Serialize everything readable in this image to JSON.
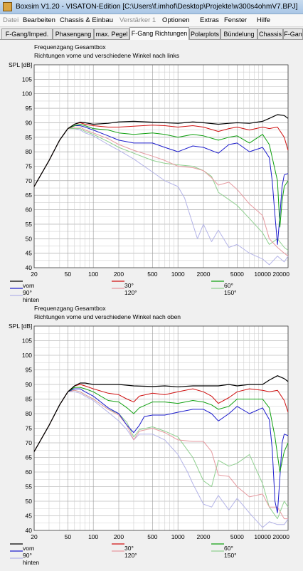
{
  "window": {
    "title": "Boxsim V1.20 - VISATON-Edition [C:\\Users\\f.imhof\\Desktop\\Projekte\\w300s4ohmV7.BPJ]"
  },
  "menu": [
    {
      "label": "Datei",
      "disabled": true
    },
    {
      "label": "Bearbeiten",
      "disabled": false
    },
    {
      "label": "Chassis & Einbau",
      "disabled": false
    },
    {
      "label": "Verstärker 1",
      "disabled": true
    },
    {
      "label": "Optionen",
      "disabled": false
    },
    {
      "label": "Extras",
      "disabled": false
    },
    {
      "label": "Fenster",
      "disabled": false
    },
    {
      "label": "Hilfe",
      "disabled": false
    }
  ],
  "tabs": [
    "F-Gang/Imped.",
    "Phasengang",
    "max. Pegel",
    "F-Gang Richtungen",
    "Polarplots",
    "Bündelung",
    "Chassis",
    "F-Gan"
  ],
  "active_tab": "F-Gang Richtungen",
  "colors": {
    "vorn": "#000000",
    "30": "#d01010",
    "60": "#10a010",
    "90": "#1c1ccc",
    "120": "#e69aa0",
    "150": "#8fd08f",
    "hinten": "#b4b4e8"
  },
  "chart_data": [
    {
      "type": "line",
      "title": "Frequenzgang Gesamtbox",
      "subtitle": "Richtungen vorne und verschiedene Winkel nach links",
      "ylabel": "SPL [dB]",
      "xscale": "log",
      "xlim": [
        20,
        20000
      ],
      "ylim": [
        40,
        110
      ],
      "xticks": [
        "20",
        "50",
        "100",
        "200",
        "500",
        "1000",
        "2000",
        "5000",
        "10000",
        "20000"
      ],
      "yticks": [
        "40",
        "45",
        "50",
        "55",
        "60",
        "65",
        "70",
        "75",
        "80",
        "85",
        "90",
        "95",
        "100",
        "105"
      ],
      "grid": true,
      "legend": [
        {
          "key": "vorn",
          "label": "vorn"
        },
        {
          "key": "30",
          "label": "30°"
        },
        {
          "key": "60",
          "label": "60°"
        },
        {
          "key": "90",
          "label": "90°"
        },
        {
          "key": "120",
          "label": "120°"
        },
        {
          "key": "150",
          "label": "150°"
        },
        {
          "key": "hinten",
          "label": "hinten"
        }
      ],
      "series": [
        {
          "name": "vorn",
          "key": "vorn",
          "x": [
            20,
            30,
            40,
            50,
            60,
            70,
            80,
            100,
            150,
            200,
            300,
            500,
            700,
            1000,
            1500,
            2000,
            3000,
            4000,
            5000,
            7000,
            10000,
            12000,
            15000,
            18000,
            20000
          ],
          "y": [
            68,
            77,
            84,
            88,
            89.5,
            90.2,
            90,
            89.5,
            89.8,
            90.3,
            90.5,
            90.2,
            90,
            89.8,
            90.3,
            90,
            89.5,
            89.8,
            90,
            89.8,
            90.5,
            91.5,
            92.8,
            92.5,
            91.5
          ]
        },
        {
          "name": "30°",
          "key": "30",
          "x": [
            20,
            30,
            40,
            50,
            60,
            70,
            80,
            100,
            150,
            200,
            300,
            500,
            700,
            1000,
            1500,
            2000,
            3000,
            4000,
            5000,
            7000,
            10000,
            12000,
            15000,
            18000,
            20000
          ],
          "y": [
            68,
            77,
            84,
            88,
            89.5,
            90,
            89.5,
            89,
            88.5,
            88.5,
            88.8,
            89.2,
            89,
            88.5,
            89,
            88.5,
            87,
            88,
            88.5,
            87.5,
            88.5,
            88,
            88.5,
            85,
            80.5
          ]
        },
        {
          "name": "60°",
          "key": "60",
          "x": [
            20,
            30,
            40,
            50,
            60,
            70,
            80,
            100,
            150,
            200,
            300,
            500,
            700,
            1000,
            1500,
            2000,
            3000,
            4000,
            5000,
            7000,
            10000,
            12000,
            15000,
            16000,
            17000,
            18000,
            20000
          ],
          "y": [
            68,
            77,
            84,
            88,
            89,
            89.5,
            89,
            88,
            87.5,
            86.5,
            86,
            86.5,
            86,
            85,
            86,
            85.5,
            84,
            85,
            85.5,
            83,
            86,
            82.5,
            70,
            54,
            63,
            68,
            70
          ]
        },
        {
          "name": "90°",
          "key": "90",
          "x": [
            20,
            30,
            40,
            50,
            60,
            70,
            80,
            100,
            150,
            200,
            300,
            500,
            700,
            1000,
            1500,
            2000,
            3000,
            4000,
            5000,
            7000,
            10000,
            12000,
            13000,
            14000,
            15000,
            16000,
            17000,
            18000,
            20000
          ],
          "y": [
            68,
            77,
            84,
            88,
            89,
            89,
            88.5,
            87.5,
            85.5,
            84,
            83,
            83,
            81.5,
            80,
            82,
            81.5,
            79.5,
            82.5,
            83,
            80,
            81.5,
            78,
            70,
            58,
            48,
            58,
            68,
            72,
            72.5
          ]
        },
        {
          "name": "120°",
          "key": "120",
          "x": [
            20,
            30,
            40,
            50,
            60,
            70,
            80,
            100,
            150,
            200,
            300,
            500,
            700,
            1000,
            1500,
            2000,
            2500,
            3000,
            4000,
            5000,
            7000,
            10000,
            12000,
            15000,
            18000,
            20000
          ],
          "y": [
            68,
            77,
            84,
            88,
            88.5,
            88.5,
            87.5,
            86.5,
            84.5,
            82.5,
            80.5,
            78.5,
            77,
            75,
            74.5,
            73.5,
            71,
            68.5,
            69.5,
            67,
            62,
            58,
            50,
            47,
            45,
            44
          ]
        },
        {
          "name": "150°",
          "key": "150",
          "x": [
            20,
            30,
            40,
            50,
            60,
            70,
            80,
            100,
            150,
            200,
            300,
            500,
            700,
            1000,
            1500,
            2000,
            2500,
            3000,
            4000,
            5000,
            7000,
            10000,
            12000,
            15000,
            18000,
            20000
          ],
          "y": [
            68,
            77,
            84,
            88,
            88,
            88,
            87,
            86,
            83.5,
            81.5,
            79.5,
            77,
            76,
            75.5,
            75,
            73.5,
            71.5,
            66,
            63.5,
            61.5,
            57,
            52,
            48,
            50,
            47,
            46
          ]
        },
        {
          "name": "hinten",
          "key": "hinten",
          "x": [
            20,
            30,
            40,
            50,
            60,
            70,
            80,
            100,
            150,
            200,
            300,
            500,
            700,
            1000,
            1200,
            1500,
            1700,
            2000,
            2500,
            3000,
            4000,
            5000,
            7000,
            10000,
            12000,
            15000,
            18000,
            20000
          ],
          "y": [
            68,
            77,
            84,
            88,
            88,
            87.5,
            86.5,
            85.5,
            82.5,
            80.5,
            77.5,
            73,
            70,
            68,
            64,
            55,
            50,
            55,
            49,
            53,
            47,
            48,
            45,
            43,
            41,
            44,
            42,
            44
          ]
        }
      ]
    },
    {
      "type": "line",
      "title": "Frequenzgang Gesamtbox",
      "subtitle": "Richtungen vorne und verschiedene Winkel nach oben",
      "ylabel": "SPL [dB]",
      "xscale": "log",
      "xlim": [
        20,
        20000
      ],
      "ylim": [
        40,
        110
      ],
      "xticks": [
        "20",
        "50",
        "100",
        "200",
        "500",
        "1000",
        "2000",
        "5000",
        "10000",
        "20000"
      ],
      "yticks": [
        "40",
        "45",
        "50",
        "55",
        "60",
        "65",
        "70",
        "75",
        "80",
        "85",
        "90",
        "95",
        "100",
        "105"
      ],
      "grid": true,
      "legend": [
        {
          "key": "vorn",
          "label": "vorn"
        },
        {
          "key": "30",
          "label": "30°"
        },
        {
          "key": "60",
          "label": "60°"
        },
        {
          "key": "90",
          "label": "90°"
        },
        {
          "key": "120",
          "label": "120°"
        },
        {
          "key": "150",
          "label": "150°"
        },
        {
          "key": "hinten",
          "label": "hinten"
        }
      ],
      "series": [
        {
          "name": "vorn",
          "key": "vorn",
          "x": [
            20,
            30,
            40,
            50,
            60,
            70,
            80,
            100,
            150,
            200,
            300,
            500,
            700,
            1000,
            1500,
            2000,
            3000,
            4000,
            5000,
            7000,
            10000,
            12000,
            15000,
            18000,
            20000
          ],
          "y": [
            67,
            76,
            83,
            87.5,
            89.5,
            90.5,
            90.5,
            90,
            90,
            90,
            89.5,
            89.3,
            89.5,
            89.2,
            89.5,
            89.5,
            89.5,
            90,
            89.5,
            90,
            90,
            91.5,
            93,
            92,
            91
          ]
        },
        {
          "name": "30°",
          "key": "30",
          "x": [
            20,
            30,
            40,
            50,
            60,
            70,
            80,
            100,
            150,
            200,
            250,
            300,
            350,
            500,
            700,
            1000,
            1500,
            2000,
            2500,
            3000,
            4000,
            5000,
            7000,
            10000,
            12000,
            15000,
            18000,
            20000
          ],
          "y": [
            67,
            76,
            83,
            87.5,
            89.5,
            90,
            89.5,
            88.5,
            87,
            86.5,
            85,
            84,
            86,
            87,
            86.5,
            87.5,
            88.5,
            87.5,
            86,
            83.5,
            85.5,
            87.5,
            88.5,
            88,
            87.5,
            88,
            84.5,
            80.5
          ]
        },
        {
          "name": "60°",
          "key": "60",
          "x": [
            20,
            30,
            40,
            50,
            60,
            70,
            80,
            100,
            150,
            200,
            250,
            300,
            350,
            500,
            700,
            1000,
            1500,
            2000,
            2500,
            3000,
            4000,
            5000,
            7000,
            10000,
            12000,
            14000,
            16000,
            18000,
            20000
          ],
          "y": [
            67,
            76,
            83,
            87.5,
            89,
            89,
            88.5,
            87.5,
            84.5,
            84,
            82,
            80,
            82,
            84,
            84,
            83.5,
            84.5,
            84,
            83,
            81.5,
            82.5,
            85,
            85,
            85,
            82,
            72,
            60,
            67,
            70
          ]
        },
        {
          "name": "90°",
          "key": "90",
          "x": [
            20,
            30,
            40,
            50,
            60,
            70,
            80,
            100,
            150,
            200,
            250,
            300,
            350,
            400,
            500,
            700,
            1000,
            1500,
            2000,
            2500,
            3000,
            4000,
            5000,
            7000,
            10000,
            12000,
            13000,
            14000,
            15000,
            16000,
            17000,
            18000,
            20000
          ],
          "y": [
            67,
            76,
            83,
            87.5,
            88.5,
            88.5,
            87.5,
            86,
            82,
            80,
            76,
            73.5,
            76,
            79,
            79.5,
            79.5,
            80.5,
            81.5,
            81.5,
            80,
            77.5,
            80,
            82.5,
            80,
            82,
            78,
            68,
            50,
            46,
            58,
            70,
            73,
            72.5
          ]
        },
        {
          "name": "120°",
          "key": "120",
          "x": [
            20,
            30,
            40,
            50,
            60,
            70,
            80,
            100,
            150,
            200,
            250,
            300,
            350,
            500,
            700,
            1000,
            1500,
            2000,
            2500,
            3000,
            4000,
            5000,
            7000,
            10000,
            12000,
            15000,
            18000,
            20000
          ],
          "y": [
            67,
            76,
            83,
            87.5,
            88,
            87.5,
            86.5,
            85,
            81.5,
            79.5,
            76,
            71,
            74,
            75,
            73.5,
            71,
            70.5,
            70.5,
            67,
            59,
            58.5,
            55,
            51.5,
            52.5,
            48,
            48,
            44,
            44
          ]
        },
        {
          "name": "150°",
          "key": "150",
          "x": [
            20,
            30,
            40,
            50,
            60,
            70,
            80,
            100,
            150,
            200,
            250,
            300,
            350,
            500,
            700,
            1000,
            1500,
            2000,
            2500,
            3000,
            4000,
            5000,
            7000,
            10000,
            12000,
            15000,
            18000,
            20000
          ],
          "y": [
            67,
            76,
            83,
            87.5,
            88,
            87.5,
            86.5,
            85,
            81.5,
            80,
            77,
            72,
            74.5,
            75.5,
            74,
            72,
            65,
            57,
            55,
            64,
            62,
            63,
            66,
            56,
            48,
            44,
            50,
            48
          ]
        },
        {
          "name": "hinten",
          "key": "hinten",
          "x": [
            20,
            30,
            40,
            50,
            60,
            70,
            80,
            100,
            150,
            200,
            250,
            300,
            350,
            500,
            700,
            1000,
            1300,
            1500,
            2000,
            2500,
            3000,
            4000,
            5000,
            7000,
            10000,
            12000,
            15000,
            18000,
            20000
          ],
          "y": [
            67,
            76,
            83,
            87.5,
            87.5,
            87,
            86,
            84.5,
            80.5,
            77.5,
            74.5,
            71,
            73,
            73,
            71,
            66,
            60,
            56,
            49,
            48,
            52,
            47,
            51,
            46,
            41,
            43,
            42,
            42,
            44
          ]
        }
      ]
    }
  ]
}
